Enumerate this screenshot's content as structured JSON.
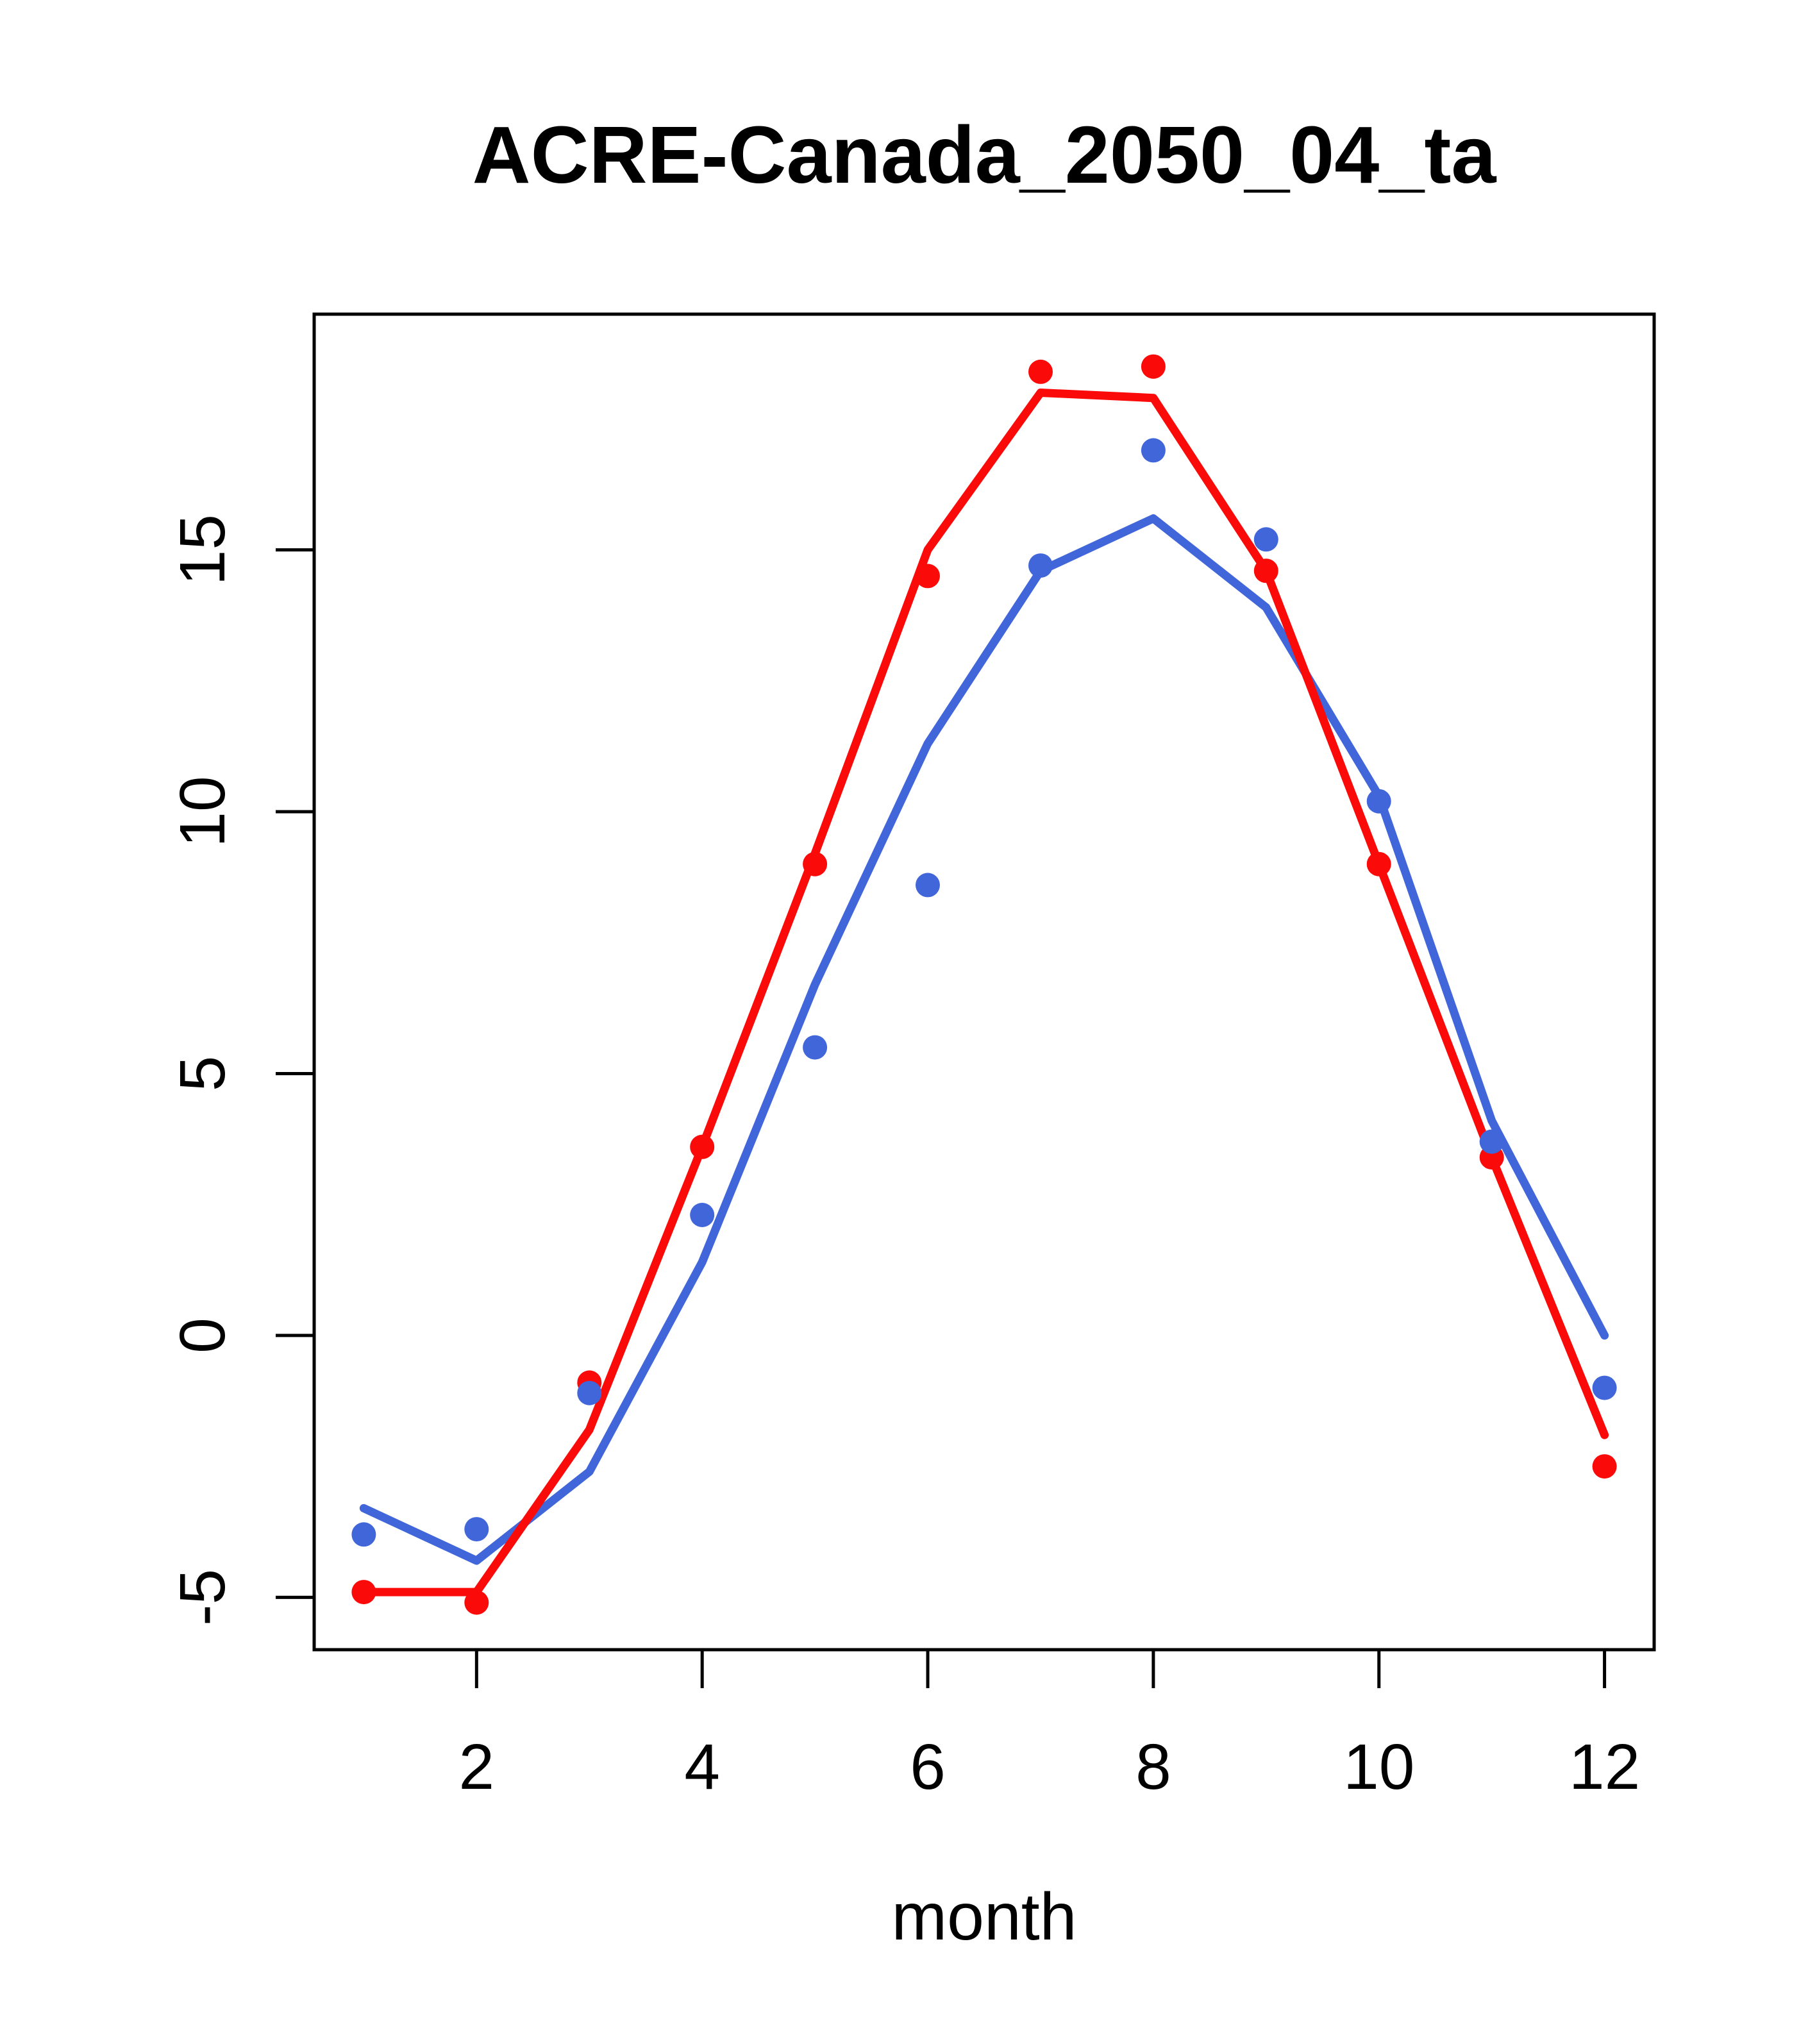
{
  "title": "ACRE-Canada_2050_04_ta",
  "x_axis": {
    "label": "month",
    "ticks": [
      2,
      4,
      6,
      8,
      10,
      12
    ]
  },
  "y_axis": {
    "label": "",
    "ticks": [
      -5,
      0,
      5,
      10,
      15
    ]
  },
  "colors": {
    "red": "#fb0a0a",
    "blue": "#4066da",
    "axis": "#000000",
    "background": "#ffffff"
  },
  "chart_data": {
    "type": "line",
    "title": "ACRE-Canada_2050_04_ta",
    "xlabel": "month",
    "ylabel": "",
    "x": [
      1,
      2,
      3,
      4,
      5,
      6,
      7,
      8,
      9,
      10,
      11,
      12
    ],
    "xlim": [
      0.56,
      12.44
    ],
    "ylim": [
      -6.0,
      19.5
    ],
    "grid": false,
    "legend_position": "none",
    "series": [
      {
        "name": "blue-line",
        "type": "line",
        "color_key": "blue",
        "values": [
          -3.3,
          -4.3,
          -2.6,
          1.4,
          6.7,
          11.3,
          14.6,
          15.6,
          13.9,
          10.3,
          4.1,
          0.0
        ]
      },
      {
        "name": "red-line",
        "type": "line",
        "color_key": "red",
        "values": [
          -4.9,
          -4.9,
          -1.8,
          3.6,
          9.2,
          15.0,
          18.0,
          17.9,
          14.6,
          9.0,
          3.4,
          -1.9
        ]
      },
      {
        "name": "red-points",
        "type": "points",
        "color_key": "red",
        "values": [
          -4.9,
          -5.1,
          -0.9,
          3.6,
          9.0,
          14.5,
          18.4,
          18.5,
          14.6,
          9.0,
          3.4,
          -2.5
        ]
      },
      {
        "name": "blue-points",
        "type": "points",
        "color_key": "blue",
        "values": [
          -3.8,
          -3.7,
          -1.1,
          2.3,
          5.5,
          8.6,
          14.7,
          16.9,
          15.2,
          10.2,
          3.7,
          -1.0
        ]
      }
    ]
  }
}
